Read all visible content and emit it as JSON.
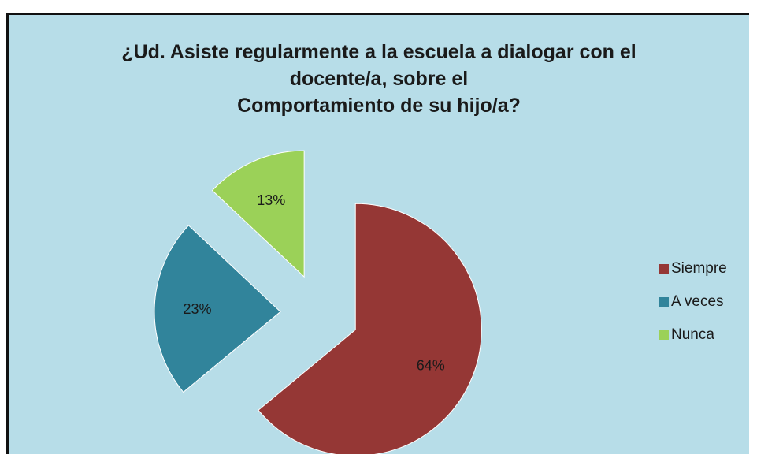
{
  "chart_data": {
    "type": "pie",
    "title_lines": [
      "¿Ud. Asiste regularmente a la escuela a dialogar  con el",
      "docente/a, sobre el",
      "Comportamiento de su hijo/a?"
    ],
    "categories": [
      "Siempre",
      "A veces",
      "Nunca"
    ],
    "values": [
      64,
      23,
      13
    ],
    "data_labels": [
      "64%",
      "23%",
      "13%"
    ],
    "colors": [
      "#953735",
      "#31849b",
      "#9bd158"
    ],
    "exploded": true,
    "legend_position": "right"
  }
}
